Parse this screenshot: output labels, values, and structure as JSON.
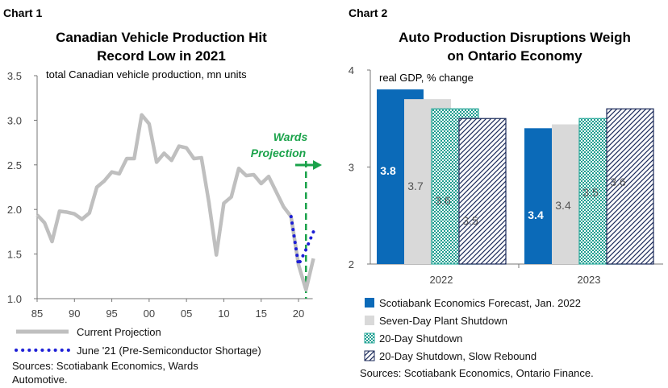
{
  "chart_data": [
    {
      "label": "Chart 1",
      "type": "line",
      "title": [
        "Canadian Vehicle Production Hit",
        "Record Low in 2021"
      ],
      "subtitle": "total Canadian vehicle production, mn units",
      "x_ticks": [
        "85",
        "90",
        "95",
        "00",
        "05",
        "10",
        "15",
        "20"
      ],
      "x_tick_values": [
        1985,
        1990,
        1995,
        2000,
        2005,
        2010,
        2015,
        2020
      ],
      "xlim": [
        1985,
        2022.7
      ],
      "ylim": [
        1.0,
        3.5
      ],
      "y_ticks": [
        "1.0",
        "1.5",
        "2.0",
        "2.5",
        "3.0",
        "3.5"
      ],
      "annotation": [
        "Wards",
        "Projection"
      ],
      "projection_start_year": 2021,
      "series": [
        {
          "name": "Current Projection",
          "color": "#bfbfbf",
          "style": "solid",
          "x": [
            1985,
            1986,
            1987,
            1988,
            1989,
            1990,
            1991,
            1992,
            1993,
            1994,
            1995,
            1996,
            1997,
            1998,
            1999,
            2000,
            2001,
            2002,
            2003,
            2004,
            2005,
            2006,
            2007,
            2008,
            2009,
            2010,
            2011,
            2012,
            2013,
            2014,
            2015,
            2016,
            2017,
            2018,
            2019,
            2020,
            2021,
            2022
          ],
          "values": [
            1.94,
            1.85,
            1.64,
            1.98,
            1.97,
            1.95,
            1.89,
            1.96,
            2.25,
            2.32,
            2.42,
            2.4,
            2.57,
            2.57,
            3.06,
            2.96,
            2.53,
            2.63,
            2.55,
            2.71,
            2.69,
            2.57,
            2.58,
            2.08,
            1.49,
            2.07,
            2.14,
            2.46,
            2.38,
            2.39,
            2.29,
            2.37,
            2.2,
            2.03,
            1.92,
            1.38,
            1.1,
            1.45
          ]
        },
        {
          "name": "June '21 (Pre-Semiconductor Shortage)",
          "color": "#1d1fd6",
          "style": "dotted",
          "x": [
            2019,
            2020,
            2021,
            2022
          ],
          "values": [
            1.92,
            1.38,
            1.55,
            1.75
          ]
        }
      ],
      "source": [
        "Sources: Scotiabank Economics, Wards",
        "Automotive."
      ]
    },
    {
      "label": "Chart 2",
      "type": "bar",
      "title": [
        "Auto Production Disruptions Weigh",
        "on Ontario Economy"
      ],
      "subtitle": "real GDP, % change",
      "categories": [
        "2022",
        "2023"
      ],
      "ylim": [
        2,
        4
      ],
      "y_ticks": [
        "2",
        "3",
        "4"
      ],
      "series": [
        {
          "name": "Scotiabank Economics Forecast, Jan. 2022",
          "values": [
            3.8,
            3.4
          ],
          "labels": [
            "3.8",
            "3.4"
          ],
          "fill": "solid",
          "color": "#0b6ab8"
        },
        {
          "name": "Seven-Day Plant Shutdown",
          "values": [
            3.7,
            3.44
          ],
          "labels": [
            "3.7",
            "3.4"
          ],
          "fill": "solid",
          "color": "#d9d9d9"
        },
        {
          "name": "20-Day Shutdown",
          "values": [
            3.6,
            3.5
          ],
          "labels": [
            "3.6",
            "3.5"
          ],
          "fill": "checker",
          "color": "#2aa99b"
        },
        {
          "name": "20-Day Shutdown, Slow Rebound",
          "values": [
            3.5,
            3.6
          ],
          "labels": [
            "3.5",
            "3.6"
          ],
          "fill": "diagonal",
          "color": "#1b2a5a"
        }
      ],
      "source": "Sources: Scotiabank Economics, Ontario Finance."
    }
  ]
}
